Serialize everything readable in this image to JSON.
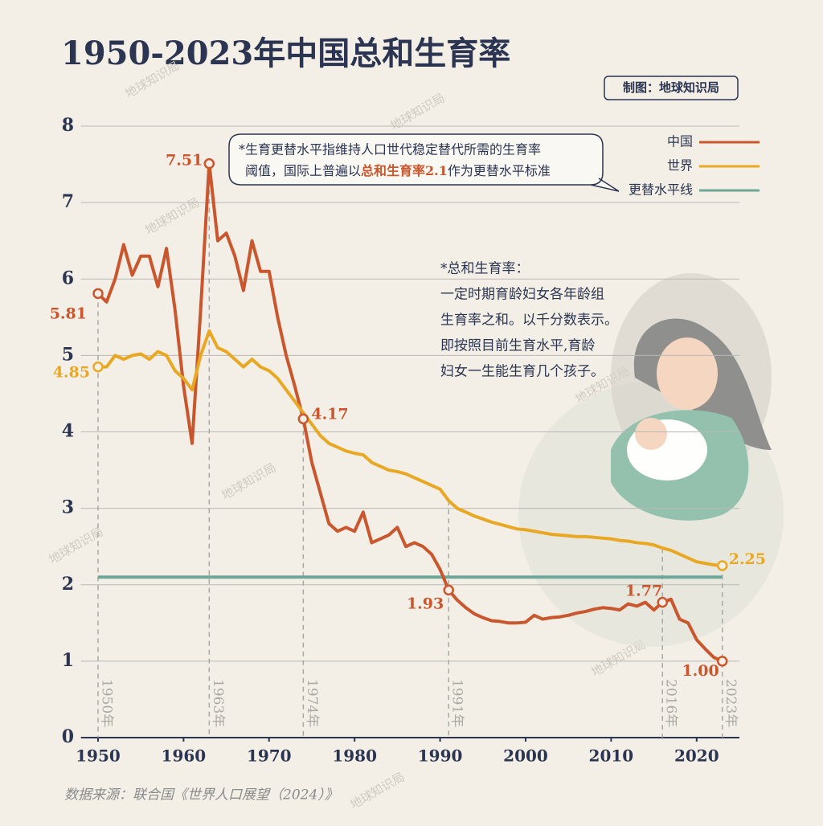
{
  "chart_data": {
    "type": "line",
    "title": "1950-2023年中国总和生育率",
    "credit": "制图：地球知识局",
    "source": "数据来源：联合国《世界人口展望（2024）》",
    "watermark": "地球知识局",
    "note": [
      "*生育更替水平指维持人口世代稳定替代所需的生育率",
      "阈值，国际上普遍以",
      "总和生育率2.1",
      "作为更替水平标准"
    ],
    "definition": [
      "*总和生育率：",
      "一定时期育龄妇女各年龄组",
      "生育率之和。以千分数表示。",
      "即按照目前生育水平,育龄",
      "妇女一生能生育几个孩子。"
    ],
    "x": [
      1950,
      1951,
      1952,
      1953,
      1954,
      1955,
      1956,
      1957,
      1958,
      1959,
      1960,
      1961,
      1962,
      1963,
      1964,
      1965,
      1966,
      1967,
      1968,
      1969,
      1970,
      1971,
      1972,
      1973,
      1974,
      1975,
      1976,
      1977,
      1978,
      1979,
      1980,
      1981,
      1982,
      1983,
      1984,
      1985,
      1986,
      1987,
      1988,
      1989,
      1990,
      1991,
      1992,
      1993,
      1994,
      1995,
      1996,
      1997,
      1998,
      1999,
      2000,
      2001,
      2002,
      2003,
      2004,
      2005,
      2006,
      2007,
      2008,
      2009,
      2010,
      2011,
      2012,
      2013,
      2014,
      2015,
      2016,
      2017,
      2018,
      2019,
      2020,
      2021,
      2022,
      2023
    ],
    "series": [
      {
        "name": "中国",
        "color": "#c9562d",
        "values": [
          5.81,
          5.7,
          6.0,
          6.45,
          6.05,
          6.3,
          6.3,
          5.9,
          6.4,
          5.6,
          4.6,
          3.85,
          5.6,
          7.51,
          6.5,
          6.6,
          6.3,
          5.85,
          6.5,
          6.1,
          6.1,
          5.5,
          5.0,
          4.6,
          4.17,
          3.6,
          3.2,
          2.8,
          2.7,
          2.75,
          2.7,
          2.95,
          2.55,
          2.6,
          2.65,
          2.75,
          2.5,
          2.55,
          2.5,
          2.4,
          2.2,
          1.93,
          1.8,
          1.7,
          1.62,
          1.57,
          1.53,
          1.52,
          1.5,
          1.5,
          1.51,
          1.6,
          1.55,
          1.57,
          1.58,
          1.6,
          1.63,
          1.65,
          1.68,
          1.7,
          1.69,
          1.67,
          1.75,
          1.72,
          1.77,
          1.67,
          1.77,
          1.81,
          1.55,
          1.5,
          1.28,
          1.16,
          1.05,
          1.0
        ],
        "value_labels": [
          "5.81",
          null,
          null,
          null,
          null,
          null,
          null,
          null,
          null,
          null,
          null,
          null,
          null,
          "7.51",
          null,
          null,
          null,
          null,
          null,
          null,
          null,
          null,
          null,
          null,
          "4.17",
          null,
          null,
          null,
          null,
          null,
          null,
          null,
          null,
          null,
          null,
          null,
          null,
          null,
          null,
          null,
          null,
          "1.93",
          null,
          null,
          null,
          null,
          null,
          null,
          null,
          null,
          null,
          null,
          null,
          null,
          null,
          null,
          null,
          null,
          null,
          null,
          null,
          null,
          null,
          null,
          null,
          null,
          "1.77",
          null,
          null,
          null,
          null,
          null,
          null,
          "1.00"
        ]
      },
      {
        "name": "世界",
        "color": "#e8a824",
        "values": [
          4.85,
          4.85,
          5.0,
          4.95,
          5.0,
          5.02,
          4.95,
          5.05,
          5.0,
          4.8,
          4.7,
          4.55,
          5.0,
          5.32,
          5.1,
          5.05,
          4.95,
          4.85,
          4.95,
          4.85,
          4.8,
          4.7,
          4.55,
          4.4,
          4.25,
          4.1,
          3.95,
          3.85,
          3.8,
          3.75,
          3.72,
          3.7,
          3.6,
          3.55,
          3.5,
          3.48,
          3.45,
          3.4,
          3.35,
          3.3,
          3.25,
          3.1,
          3.0,
          2.95,
          2.9,
          2.86,
          2.82,
          2.79,
          2.76,
          2.73,
          2.72,
          2.7,
          2.68,
          2.66,
          2.65,
          2.64,
          2.63,
          2.63,
          2.62,
          2.61,
          2.6,
          2.58,
          2.57,
          2.55,
          2.54,
          2.52,
          2.48,
          2.45,
          2.4,
          2.35,
          2.3,
          2.28,
          2.26,
          2.25
        ],
        "value_labels": [
          "4.85",
          null,
          null,
          null,
          null,
          null,
          null,
          null,
          null,
          null,
          null,
          null,
          null,
          null,
          null,
          null,
          null,
          null,
          null,
          null,
          null,
          null,
          null,
          null,
          null,
          null,
          null,
          null,
          null,
          null,
          null,
          null,
          null,
          null,
          null,
          null,
          null,
          null,
          null,
          null,
          null,
          null,
          null,
          null,
          null,
          null,
          null,
          null,
          null,
          null,
          null,
          null,
          null,
          null,
          null,
          null,
          null,
          null,
          null,
          null,
          null,
          null,
          null,
          null,
          null,
          null,
          null,
          null,
          null,
          null,
          null,
          null,
          null,
          "2.25"
        ]
      }
    ],
    "reference_line": {
      "name": "更替水平线",
      "value": 2.1,
      "color": "#6ea79a"
    },
    "highlight_years": [
      {
        "value": 1950,
        "label": "1950年"
      },
      {
        "value": 1963,
        "label": "1963年"
      },
      {
        "value": 1974,
        "label": "1974年"
      },
      {
        "value": 1991,
        "label": "1991年"
      },
      {
        "value": 2016,
        "label": "2016年"
      },
      {
        "value": 2023,
        "label": "2023年"
      }
    ],
    "xlim": [
      1948,
      2025
    ],
    "xticks": [
      1950,
      1960,
      1970,
      1980,
      1990,
      2000,
      2010,
      2020
    ],
    "ylim": [
      0,
      8
    ],
    "yticks": [
      0,
      1,
      2,
      3,
      4,
      5,
      6,
      7,
      8
    ],
    "grid": true
  }
}
